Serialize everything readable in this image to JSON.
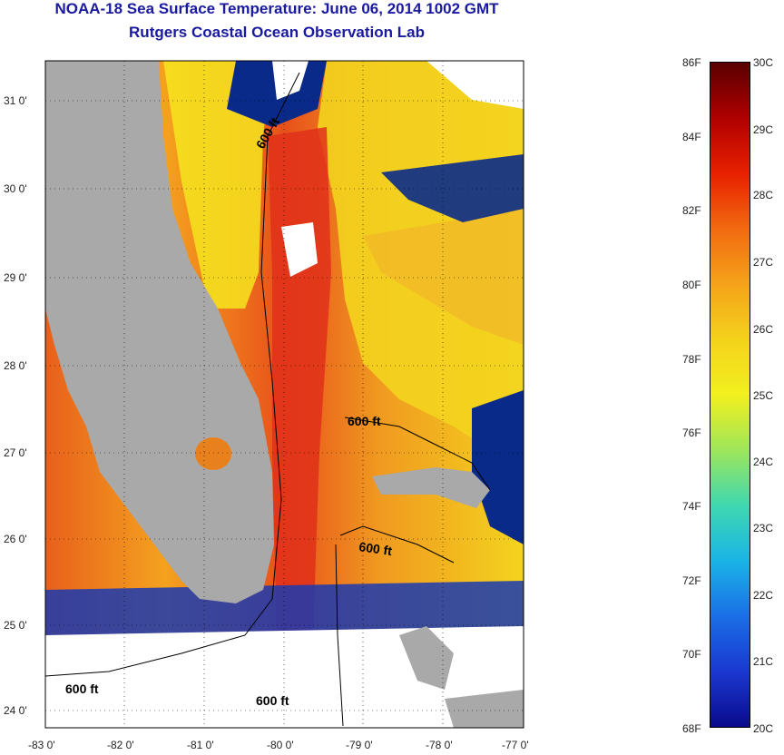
{
  "header": {
    "title": "NOAA-18 Sea Surface Temperature:  June 06, 2014 1002 GMT",
    "subtitle": "Rutgers Coastal Ocean Observation Lab"
  },
  "map": {
    "lat_labels": [
      "31 0'",
      "30 0'",
      "29 0'",
      "28 0'",
      "27 0'",
      "26 0'",
      "25 0'",
      "24 0'"
    ],
    "lon_labels": [
      "-83 0'",
      "-82 0'",
      "-81 0'",
      "-80 0'",
      "-79 0'",
      "-78 0'",
      "-77 0'"
    ],
    "contour_labels": [
      "600 ft",
      "600 ft",
      "600 ft",
      "600 ft",
      "600 ft"
    ],
    "colors": {
      "land": "#a9a9a9",
      "cloud": "#ffffff",
      "warm": "#e8601c",
      "warmest": "#e0301a",
      "mid": "#f4a21e",
      "cool": "#f6e51e",
      "cold": "#0a2a8a"
    }
  },
  "colorbar": {
    "fahrenheit": [
      "86F",
      "84F",
      "82F",
      "80F",
      "78F",
      "76F",
      "74F",
      "72F",
      "70F",
      "68F"
    ],
    "celsius": [
      "30C",
      "29C",
      "28C",
      "27C",
      "26C",
      "25C",
      "24C",
      "23C",
      "22C",
      "21C",
      "20C"
    ],
    "gradient": [
      "#5a0000",
      "#b00000",
      "#e82000",
      "#f26a10",
      "#f5a21a",
      "#f4d21c",
      "#f2f01e",
      "#9ee65a",
      "#3fd8b0",
      "#1ab4e6",
      "#1a6ee6",
      "#1a38d0",
      "#0a0a8c"
    ]
  }
}
